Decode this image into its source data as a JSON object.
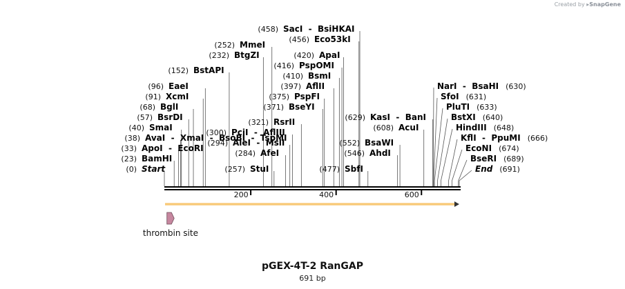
{
  "credit": {
    "prefix": "Created by",
    "brand": "SnapGene"
  },
  "title": "pGEX-4T-2 RanGAP",
  "length_label": "691 bp",
  "colors": {
    "feature_line": "#f5b041",
    "feature_fill": "#fbe3b0",
    "thrombin_fill": "#c6879f",
    "ruler": "#000000"
  },
  "ruler": {
    "start": 0,
    "end": 691,
    "ticks": [
      200,
      400,
      600
    ]
  },
  "sites": [
    {
      "name": "Start",
      "pos": 0,
      "italic": true
    },
    {
      "name": "BamHI",
      "pos": 23
    },
    {
      "name": "ApoI  -  EcoRI",
      "pos": 33
    },
    {
      "name": "AvaI  -  XmaI  -  BsoBI  -  TspMI",
      "pos": 38
    },
    {
      "name": "SmaI",
      "pos": 40
    },
    {
      "name": "BsrDI",
      "pos": 57
    },
    {
      "name": "BglI",
      "pos": 68
    },
    {
      "name": "XcmI",
      "pos": 91
    },
    {
      "name": "EaeI",
      "pos": 96
    },
    {
      "name": "BstAPI",
      "pos": 152
    },
    {
      "name": "BtgZI",
      "pos": 232
    },
    {
      "name": "MmeI",
      "pos": 252
    },
    {
      "name": "StuI",
      "pos": 257
    },
    {
      "name": "AfeI",
      "pos": 284
    },
    {
      "name": "AleI  -  MslI",
      "pos": 294
    },
    {
      "name": "PciI  -  AflIII",
      "pos": 300
    },
    {
      "name": "RsrII",
      "pos": 321
    },
    {
      "name": "BseYI",
      "pos": 371
    },
    {
      "name": "PspFI",
      "pos": 375
    },
    {
      "name": "AflII",
      "pos": 397
    },
    {
      "name": "BsmI",
      "pos": 410
    },
    {
      "name": "PspOMI",
      "pos": 416
    },
    {
      "name": "ApaI",
      "pos": 420
    },
    {
      "name": "Eco53kI",
      "pos": 456
    },
    {
      "name": "SacI  -  BsiHKAI",
      "pos": 458
    },
    {
      "name": "SbfI",
      "pos": 477
    },
    {
      "name": "AhdI",
      "pos": 546
    },
    {
      "name": "BsaWI",
      "pos": 552
    },
    {
      "name": "AcuI",
      "pos": 608
    },
    {
      "name": "KasI  -  BanI",
      "pos": 629
    },
    {
      "name": "NarI  -  BsaHI",
      "pos": 630
    },
    {
      "name": "SfoI",
      "pos": 631
    },
    {
      "name": "PluTI",
      "pos": 633
    },
    {
      "name": "BstXI",
      "pos": 640
    },
    {
      "name": "HindIII",
      "pos": 648
    },
    {
      "name": "KflI  -  PpuMI",
      "pos": 666
    },
    {
      "name": "EcoNI",
      "pos": 674
    },
    {
      "name": "BseRI",
      "pos": 689
    },
    {
      "name": "End",
      "pos": 691,
      "italic": true
    }
  ],
  "features": [
    {
      "name": "thrombin site",
      "start": 6,
      "end": 23
    }
  ]
}
